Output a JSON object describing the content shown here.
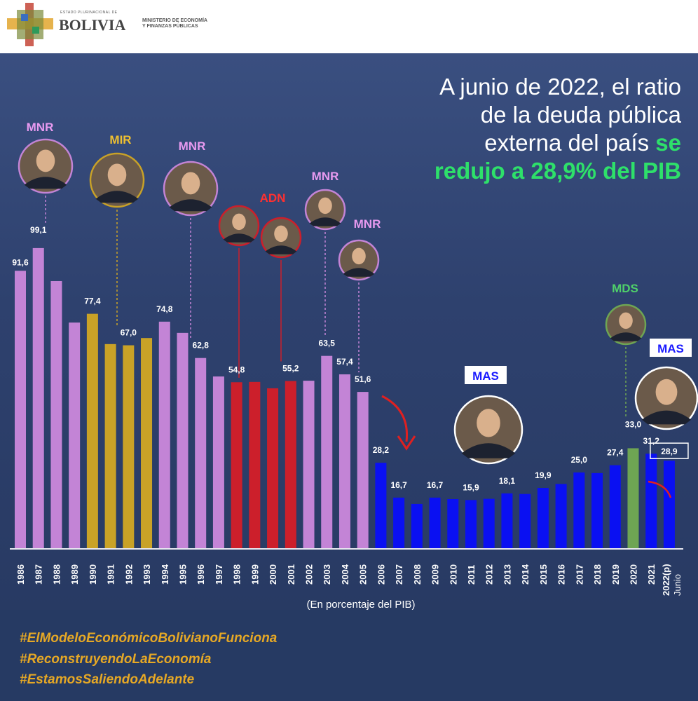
{
  "header": {
    "estado": "ESTADO PLURINACIONAL DE",
    "bolivia": "BOLIVIA",
    "ministerio_line1": "MINISTERIO DE ECONOMÍA",
    "ministerio_line2": "Y FINANZAS PÚBLICAS"
  },
  "headline": {
    "line1": "A junio de 2022, el ratio",
    "line2": "de la deuda pública",
    "line3_plain": "externa del país ",
    "line3_highlight": "se",
    "line4_highlight": "redujo a 28,9% del PIB",
    "highlight_color": "#2ee06a"
  },
  "chart_data": {
    "type": "bar",
    "xlabel": "(En porcentaje del PIB)",
    "ylabel": "",
    "ylim": [
      0,
      100
    ],
    "grid": false,
    "categories": [
      "1986",
      "1987",
      "1988",
      "1989",
      "1990",
      "1991",
      "1992",
      "1993",
      "1994",
      "1995",
      "1996",
      "1997",
      "1998",
      "1999",
      "2000",
      "2001",
      "2002",
      "2003",
      "2004",
      "2005",
      "2006",
      "2007",
      "2008",
      "2009",
      "2010",
      "2011",
      "2012",
      "2013",
      "2014",
      "2015",
      "2016",
      "2017",
      "2018",
      "2019",
      "2020",
      "2021",
      "2022(p)"
    ],
    "last_category_note": "Junio",
    "values": [
      91.6,
      99.1,
      88.2,
      74.5,
      77.4,
      67.4,
      67.0,
      69.4,
      74.8,
      71.1,
      62.8,
      56.7,
      54.8,
      54.9,
      52.8,
      55.2,
      55.3,
      63.5,
      57.4,
      51.6,
      28.2,
      16.7,
      14.6,
      16.7,
      16.2,
      15.9,
      16.3,
      18.1,
      17.9,
      19.9,
      21.2,
      25.0,
      24.8,
      27.4,
      33.0,
      31.2,
      28.9
    ],
    "data_labels": {
      "1986": "91,6",
      "1987": "99,1",
      "1990": "77,4",
      "1992": "67,0",
      "1994": "74,8",
      "1996": "62,8",
      "1998": "54,8",
      "2001": "55,2",
      "2003": "63,5",
      "2004": "57,4",
      "2005": "51,6",
      "2006": "28,2",
      "2007": "16,7",
      "2009": "16,7",
      "2011": "15,9",
      "2013": "18,1",
      "2015": "19,9",
      "2017": "25,0",
      "2019": "27,4",
      "2020": "33,0",
      "2021": "31,2",
      "2022(p)": "28,9"
    },
    "bar_parties": [
      "MNR",
      "MNR",
      "MNR",
      "MNR",
      "MIR",
      "MIR",
      "MIR",
      "MIR",
      "MNR",
      "MNR",
      "MNR",
      "MNR",
      "ADN",
      "ADN",
      "ADN",
      "ADN",
      "MNR",
      "MNR",
      "MNR",
      "MNR",
      "MAS",
      "MAS",
      "MAS",
      "MAS",
      "MAS",
      "MAS",
      "MAS",
      "MAS",
      "MAS",
      "MAS",
      "MAS",
      "MAS",
      "MAS",
      "MAS",
      "MDS",
      "MAS",
      "MAS"
    ],
    "party_colors": {
      "MNR": "#c384d6",
      "MIR": "#c9a227",
      "ADN": "#cc1f2b",
      "MAS": "#0a10f2",
      "MDS": "#6ea553"
    },
    "party_labels": [
      {
        "text": "MNR",
        "color": "#e89af0"
      },
      {
        "text": "MIR",
        "color": "#f0c030"
      },
      {
        "text": "MNR",
        "color": "#e89af0"
      },
      {
        "text": "ADN",
        "color": "#ff3030"
      },
      {
        "text": "MNR",
        "color": "#e89af0"
      },
      {
        "text": "MNR",
        "color": "#e89af0"
      },
      {
        "text": "MAS",
        "color": "#1a1aff"
      },
      {
        "text": "MDS",
        "color": "#4fd06a"
      },
      {
        "text": "MAS",
        "color": "#1a1aff"
      }
    ]
  },
  "footer": {
    "hashtags": [
      "#ElModeloEconómicoBolivianoFunciona",
      "#ReconstruyendoLaEconomía",
      "#EstamosSaliendoAdelante"
    ]
  }
}
